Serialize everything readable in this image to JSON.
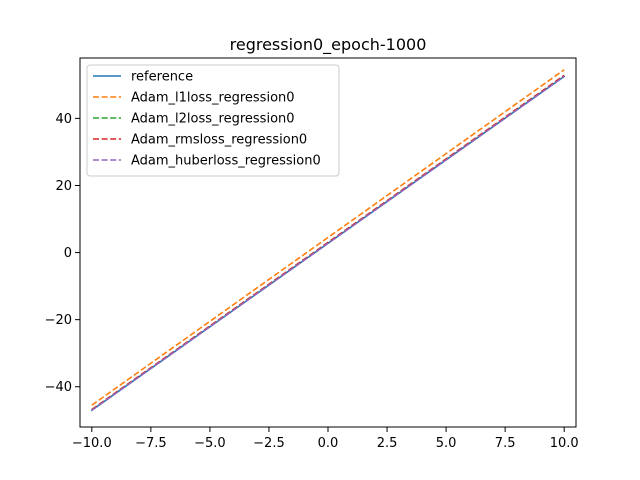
{
  "chart_data": {
    "type": "line",
    "title": "regression0_epoch-1000",
    "xlabel": "",
    "ylabel": "",
    "xlim": [
      -10.5,
      10.5
    ],
    "ylim": [
      -52,
      58
    ],
    "xticks": [
      -10.0,
      -7.5,
      -5.0,
      -2.5,
      0.0,
      2.5,
      5.0,
      7.5,
      10.0
    ],
    "xtick_labels": [
      "−10.0",
      "−7.5",
      "−5.0",
      "−2.5",
      "0.0",
      "2.5",
      "5.0",
      "7.5",
      "10.0"
    ],
    "yticks": [
      -40,
      -20,
      0,
      20,
      40
    ],
    "ytick_labels": [
      "−40",
      "−20",
      "0",
      "20",
      "40"
    ],
    "grid": false,
    "legend_position": "top-left",
    "series": [
      {
        "name": "reference",
        "color": "#1f77b4",
        "style": "solid",
        "x": [
          -10,
          10
        ],
        "y": [
          -47,
          52.5
        ]
      },
      {
        "name": "Adam_l1loss_regression0",
        "color": "#ff7f0e",
        "style": "dashed",
        "x": [
          -10,
          10
        ],
        "y": [
          -45.5,
          54.5
        ]
      },
      {
        "name": "Adam_l2loss_regression0",
        "color": "#2ca02c",
        "style": "dashed",
        "x": [
          -10,
          10
        ],
        "y": [
          -46.8,
          52.8
        ]
      },
      {
        "name": "Adam_rmsloss_regression0",
        "color": "#d62728",
        "style": "dashed",
        "x": [
          -10,
          10
        ],
        "y": [
          -46.8,
          52.8
        ]
      },
      {
        "name": "Adam_huberloss_regression0",
        "color": "#9467bd",
        "style": "dashed",
        "x": [
          -10,
          10
        ],
        "y": [
          -47,
          52.5
        ]
      }
    ]
  }
}
